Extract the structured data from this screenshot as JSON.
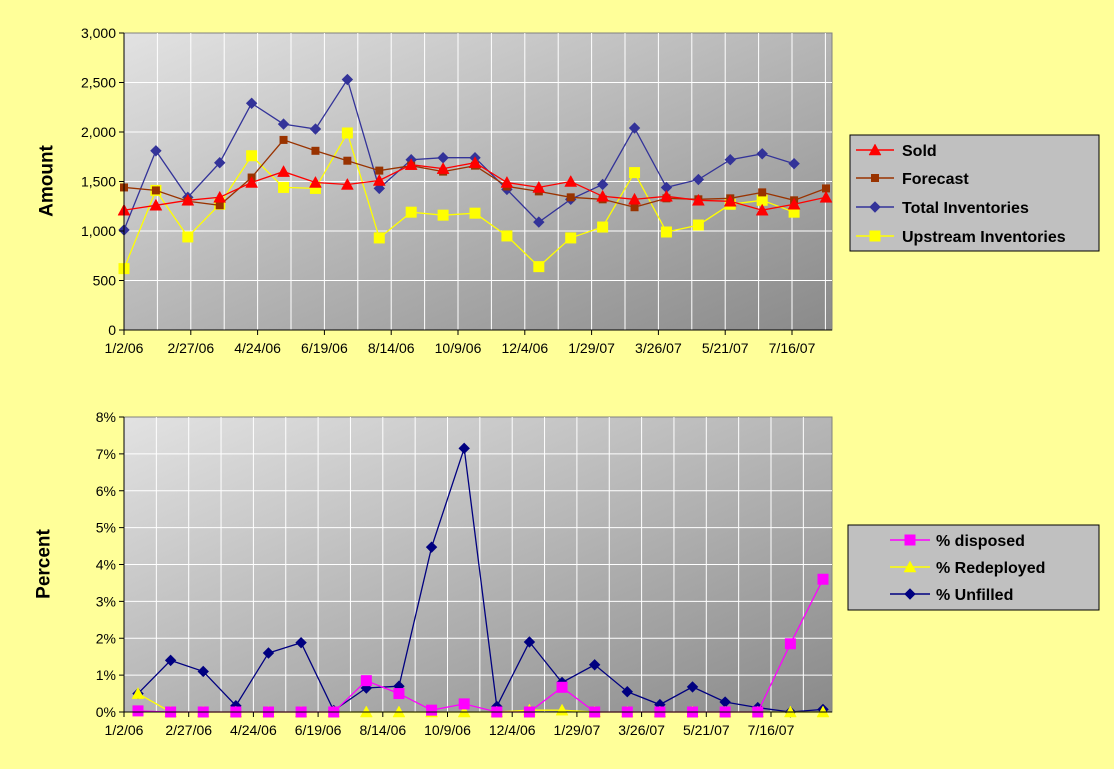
{
  "colors": {
    "background": "#FFFF99",
    "sold": "#FF0000",
    "forecast": "#993300",
    "total_inventories": "#333399",
    "upstream_inventories": "#FFFF00",
    "disposed": "#FF00FF",
    "redeployed": "#FFFF00",
    "unfilled": "#000080"
  },
  "chart_data": [
    {
      "type": "line",
      "title": "",
      "ylabel": "Amount",
      "xlabel": "",
      "ylim": [
        0,
        3000
      ],
      "y_ticks": [
        "0",
        "500",
        "1,000",
        "1,500",
        "2,000",
        "2,500",
        "3,000"
      ],
      "x_tick_labels": [
        "1/2/06",
        "2/27/06",
        "4/24/06",
        "6/19/06",
        "8/14/06",
        "10/9/06",
        "12/4/06",
        "1/29/07",
        "3/26/07",
        "5/21/07",
        "7/16/07"
      ],
      "grid": true,
      "legend_position": "right",
      "series": [
        {
          "name": "Sold",
          "marker": "triangle",
          "values": [
            1210,
            1260,
            1310,
            1340,
            1490,
            1600,
            1490,
            1470,
            1510,
            1670,
            1630,
            1690,
            1490,
            1440,
            1500,
            1350,
            1320,
            1350,
            1310,
            1300,
            1210,
            1270,
            1340
          ]
        },
        {
          "name": "Forecast",
          "marker": "square-small",
          "values": [
            1440,
            1410,
            1300,
            1260,
            1540,
            1920,
            1810,
            1710,
            1610,
            1660,
            1600,
            1660,
            1450,
            1400,
            1340,
            1320,
            1240,
            1330,
            1320,
            1330,
            1390,
            1310,
            1430
          ]
        },
        {
          "name": "Total Inventories",
          "marker": "diamond",
          "values": [
            1010,
            1810,
            1340,
            1690,
            2290,
            2080,
            2030,
            2530,
            1430,
            1720,
            1740,
            1740,
            1420,
            1090,
            1320,
            1470,
            2040,
            1440,
            1520,
            1720,
            1780,
            1680
          ]
        },
        {
          "name": "Upstream Inventories",
          "marker": "square",
          "values": [
            620,
            1410,
            940,
            1270,
            1760,
            1440,
            1430,
            1990,
            930,
            1190,
            1160,
            1180,
            950,
            640,
            930,
            1040,
            1590,
            990,
            1060,
            1270,
            1310,
            1190
          ]
        }
      ]
    },
    {
      "type": "line",
      "title": "",
      "ylabel": "Percent",
      "xlabel": "",
      "ylim": [
        0,
        8
      ],
      "y_ticks": [
        "0%",
        "1%",
        "2%",
        "3%",
        "4%",
        "5%",
        "6%",
        "7%",
        "8%"
      ],
      "x_tick_labels": [
        "1/2/06",
        "2/27/06",
        "4/24/06",
        "6/19/06",
        "8/14/06",
        "10/9/06",
        "12/4/06",
        "1/29/07",
        "3/26/07",
        "5/21/07",
        "7/16/07"
      ],
      "grid": true,
      "legend_position": "right",
      "series": [
        {
          "name": "% disposed",
          "marker": "square",
          "values": [
            0.03,
            0,
            0,
            0,
            0,
            0,
            0,
            0.85,
            0.5,
            0.05,
            0.22,
            0,
            0,
            0.67,
            0,
            0,
            0,
            0,
            0,
            0,
            1.85,
            3.6
          ]
        },
        {
          "name": "% Redeployed",
          "marker": "triangle",
          "values": [
            0.5,
            0,
            0,
            0,
            0,
            0,
            0,
            0,
            0,
            0,
            0,
            0,
            0.05,
            0.05,
            0,
            0,
            0,
            0,
            0,
            0,
            0,
            0
          ]
        },
        {
          "name": "% Unfilled",
          "marker": "diamond",
          "values": [
            0.5,
            1.4,
            1.1,
            0.17,
            1.6,
            1.88,
            0.04,
            0.65,
            0.7,
            4.47,
            7.15,
            0.15,
            1.9,
            0.8,
            1.28,
            0.55,
            0.2,
            0.68,
            0.27,
            0.12,
            0,
            0.07
          ]
        }
      ]
    }
  ]
}
